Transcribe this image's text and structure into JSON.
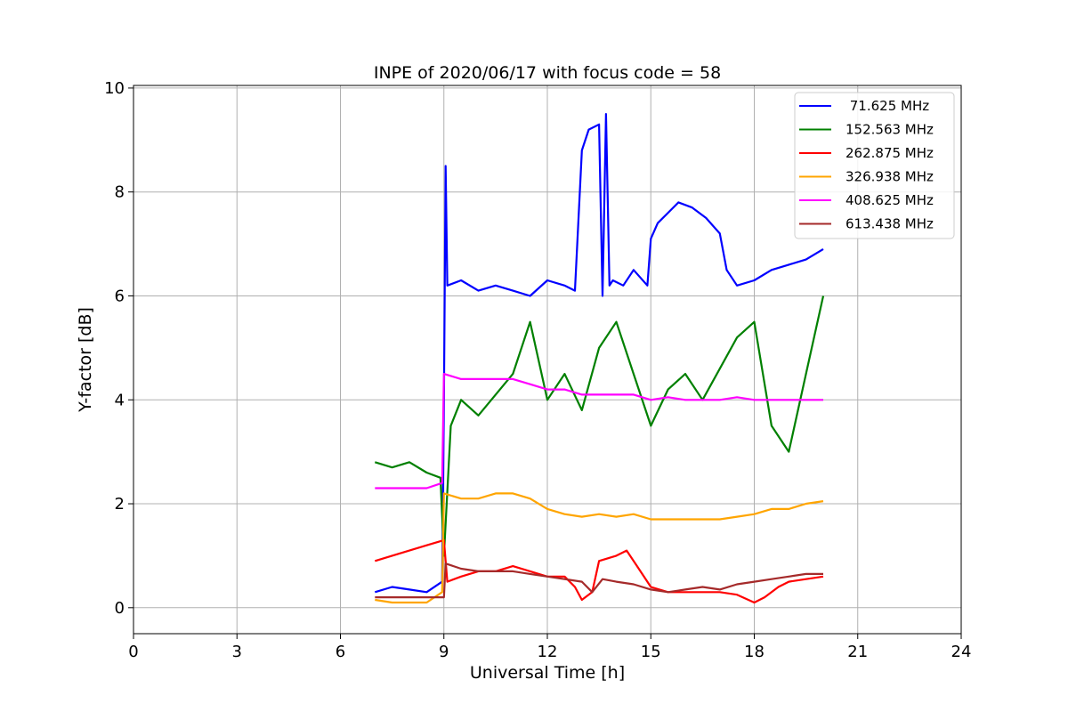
{
  "chart_data": {
    "type": "line",
    "title": "INPE of 2020/06/17 with focus code = 58",
    "xlabel": "Universal Time [h]",
    "ylabel": "Y-factor [dB]",
    "xlim": [
      0,
      24
    ],
    "ylim": [
      -0.5,
      10.05
    ],
    "xticks": [
      0,
      3,
      6,
      9,
      12,
      15,
      18,
      21,
      24
    ],
    "yticks": [
      0,
      2,
      4,
      6,
      8,
      10
    ],
    "grid": true,
    "legend_position": "top-right",
    "series": [
      {
        "name": " 71.625 MHz",
        "color": "#0000ff",
        "x": [
          7.0,
          7.5,
          8.0,
          8.5,
          8.95,
          9.0,
          9.05,
          9.1,
          9.5,
          10.0,
          10.5,
          11.0,
          11.5,
          12.0,
          12.5,
          12.8,
          13.0,
          13.2,
          13.5,
          13.6,
          13.7,
          13.8,
          13.9,
          14.2,
          14.5,
          14.9,
          15.0,
          15.2,
          15.5,
          15.8,
          16.2,
          16.6,
          17.0,
          17.2,
          17.5,
          18.0,
          18.5,
          19.0,
          19.5,
          20.0
        ],
        "y": [
          0.3,
          0.4,
          0.35,
          0.3,
          0.5,
          4.0,
          8.5,
          6.2,
          6.3,
          6.1,
          6.2,
          6.1,
          6.0,
          6.3,
          6.2,
          6.1,
          8.8,
          9.2,
          9.3,
          6.0,
          9.5,
          6.2,
          6.3,
          6.2,
          6.5,
          6.2,
          7.1,
          7.4,
          7.6,
          7.8,
          7.7,
          7.5,
          7.2,
          6.5,
          6.2,
          6.3,
          6.5,
          6.6,
          6.7,
          6.9
        ]
      },
      {
        "name": "152.563 MHz",
        "color": "#008000",
        "x": [
          7.0,
          7.5,
          8.0,
          8.5,
          8.9,
          9.0,
          9.2,
          9.5,
          10.0,
          10.5,
          11.0,
          11.5,
          12.0,
          12.5,
          13.0,
          13.5,
          14.0,
          14.5,
          15.0,
          15.5,
          16.0,
          16.5,
          17.0,
          17.5,
          18.0,
          18.5,
          19.0,
          19.5,
          20.0
        ],
        "y": [
          2.8,
          2.7,
          2.8,
          2.6,
          2.5,
          1.0,
          3.5,
          4.0,
          3.7,
          4.1,
          4.5,
          5.5,
          4.0,
          4.5,
          3.8,
          5.0,
          5.5,
          4.5,
          3.5,
          4.2,
          4.5,
          4.0,
          4.6,
          5.2,
          5.5,
          3.5,
          3.0,
          4.5,
          6.0
        ]
      },
      {
        "name": "262.875 MHz",
        "color": "#ff0000",
        "x": [
          7.0,
          7.5,
          8.0,
          8.5,
          9.0,
          9.1,
          9.5,
          10.0,
          10.5,
          11.0,
          11.5,
          12.0,
          12.5,
          12.8,
          13.0,
          13.3,
          13.5,
          14.0,
          14.3,
          14.6,
          15.0,
          15.5,
          16.0,
          16.5,
          17.0,
          17.5,
          18.0,
          18.3,
          18.7,
          19.0,
          19.5,
          20.0
        ],
        "y": [
          0.9,
          1.0,
          1.1,
          1.2,
          1.3,
          0.5,
          0.6,
          0.7,
          0.7,
          0.8,
          0.7,
          0.6,
          0.6,
          0.4,
          0.15,
          0.3,
          0.9,
          1.0,
          1.1,
          0.8,
          0.4,
          0.3,
          0.3,
          0.3,
          0.3,
          0.25,
          0.1,
          0.2,
          0.4,
          0.5,
          0.55,
          0.6
        ]
      },
      {
        "name": "326.938 MHz",
        "color": "#ffa500",
        "x": [
          7.0,
          7.5,
          8.0,
          8.5,
          8.95,
          9.0,
          9.5,
          10.0,
          10.5,
          11.0,
          11.5,
          12.0,
          12.5,
          13.0,
          13.5,
          14.0,
          14.5,
          15.0,
          15.5,
          16.0,
          16.5,
          17.0,
          17.5,
          18.0,
          18.5,
          19.0,
          19.5,
          20.0
        ],
        "y": [
          0.15,
          0.1,
          0.1,
          0.1,
          0.3,
          2.2,
          2.1,
          2.1,
          2.2,
          2.2,
          2.1,
          1.9,
          1.8,
          1.75,
          1.8,
          1.75,
          1.8,
          1.7,
          1.7,
          1.7,
          1.7,
          1.7,
          1.75,
          1.8,
          1.9,
          1.9,
          2.0,
          2.05
        ]
      },
      {
        "name": "408.625 MHz",
        "color": "#ff00ff",
        "x": [
          7.0,
          7.5,
          8.0,
          8.5,
          8.95,
          9.0,
          9.5,
          10.0,
          10.5,
          11.0,
          11.5,
          12.0,
          12.5,
          13.0,
          13.5,
          14.0,
          14.5,
          15.0,
          15.5,
          16.0,
          16.5,
          17.0,
          17.5,
          18.0,
          18.5,
          19.0,
          19.5,
          20.0
        ],
        "y": [
          2.3,
          2.3,
          2.3,
          2.3,
          2.4,
          4.5,
          4.4,
          4.4,
          4.4,
          4.4,
          4.3,
          4.2,
          4.2,
          4.1,
          4.1,
          4.1,
          4.1,
          4.0,
          4.05,
          4.0,
          4.0,
          4.0,
          4.05,
          4.0,
          4.0,
          4.0,
          4.0,
          4.0
        ]
      },
      {
        "name": "613.438 MHz",
        "color": "#a52a2a",
        "x": [
          7.0,
          7.5,
          8.0,
          8.5,
          9.0,
          9.05,
          9.5,
          10.0,
          10.5,
          11.0,
          11.5,
          12.0,
          12.5,
          13.0,
          13.3,
          13.6,
          14.0,
          14.5,
          15.0,
          15.5,
          16.0,
          16.5,
          17.0,
          17.5,
          18.0,
          18.5,
          19.0,
          19.5,
          20.0
        ],
        "y": [
          0.2,
          0.2,
          0.2,
          0.2,
          0.2,
          0.85,
          0.75,
          0.7,
          0.7,
          0.7,
          0.65,
          0.6,
          0.55,
          0.5,
          0.3,
          0.55,
          0.5,
          0.45,
          0.35,
          0.3,
          0.35,
          0.4,
          0.35,
          0.45,
          0.5,
          0.55,
          0.6,
          0.65,
          0.65
        ]
      }
    ]
  }
}
